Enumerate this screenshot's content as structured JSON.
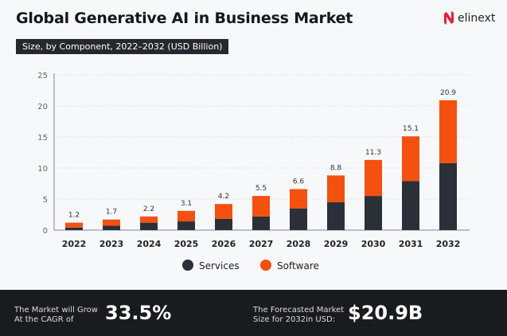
{
  "chart_data": {
    "type": "bar",
    "stacked": true,
    "title": "Global Generative AI in Business Market",
    "subtitle": "Size, by Component, 2022–2032 (USD Billion)",
    "categories": [
      "2022",
      "2023",
      "2024",
      "2025",
      "2026",
      "2027",
      "2028",
      "2029",
      "2030",
      "2031",
      "2032"
    ],
    "series": [
      {
        "name": "Services",
        "color": "#2b2f38",
        "values": [
          0.4,
          0.7,
          1.2,
          1.4,
          1.8,
          2.2,
          3.5,
          4.5,
          5.5,
          7.9,
          10.8
        ]
      },
      {
        "name": "Software",
        "color": "#f4500f",
        "values": [
          0.8,
          1.0,
          1.0,
          1.7,
          2.4,
          3.3,
          3.1,
          4.3,
          5.8,
          7.2,
          10.1
        ]
      }
    ],
    "totals": [
      "1.2",
      "1.7",
      "2.2",
      "3.1",
      "4.2",
      "5.5",
      "6.6",
      "8.8",
      "11.3",
      "15.1",
      "20.9"
    ],
    "ylim": [
      0,
      25
    ],
    "yticks": [
      "0",
      "5",
      "10",
      "15",
      "20",
      "25"
    ],
    "grid": true,
    "legend_position": "bottom"
  },
  "brand": {
    "name": "elinext",
    "accent": "#e0203a"
  },
  "footer": {
    "cagr_label_1": "The Market will Grow",
    "cagr_label_2": "At the CAGR of",
    "cagr_value": "33.5%",
    "size_label_1": "The Forecasted Market",
    "size_label_2": "Size for 2032in USD:",
    "size_value": "$20.9B"
  }
}
